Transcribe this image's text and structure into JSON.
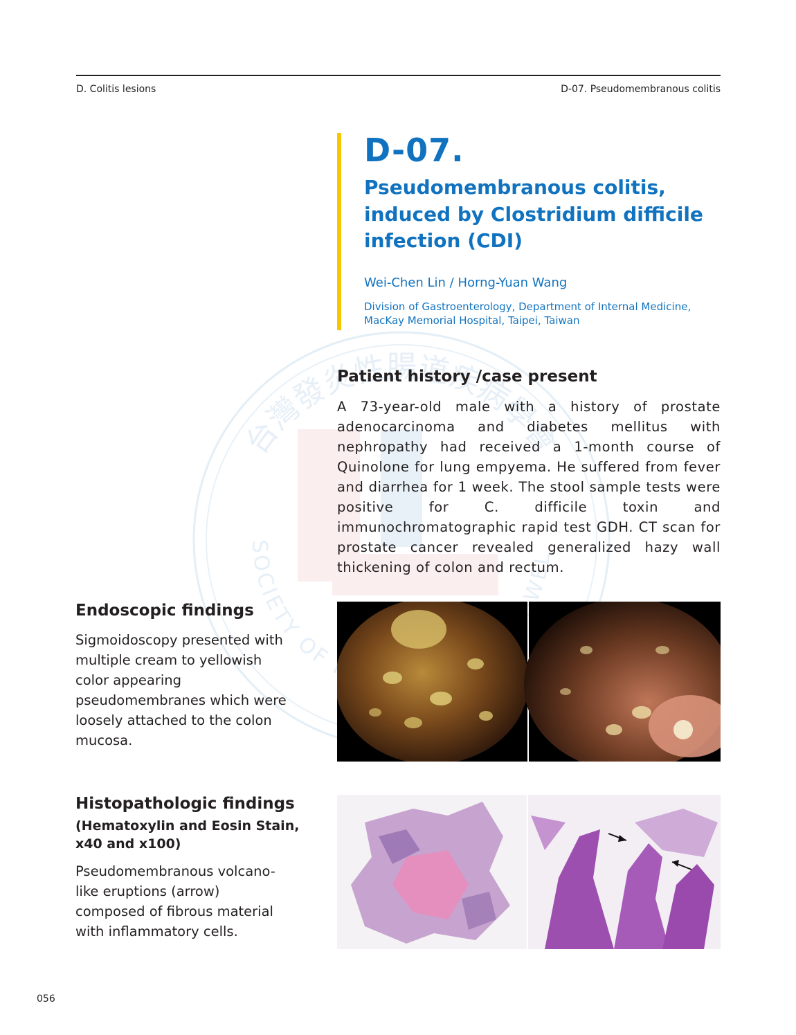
{
  "header": {
    "section": "D. Colitis lesions",
    "chapter": "D-07. Pseudomembranous colitis"
  },
  "title_block": {
    "code": "D-07.",
    "title": "Pseudomembranous colitis, induced by Clostridium difficile infection (CDI)",
    "authors": "Wei-Chen Lin / Horng-Yuan Wang",
    "affiliation": "Division of Gastroenterology, Department of Internal Medicine, MacKay Memorial Hospital, Taipei, Taiwan"
  },
  "patient_history": {
    "heading": "Patient history /case present",
    "text": "A 73-year-old male with a history of prostate adenocarcinoma and diabetes mellitus with nephropathy had received a 1-month course of Quinolone for lung empyema. He suffered from fever and diarrhea for 1 week. The stool sample tests were positive for C. difficile toxin and immunochromatographic rapid test GDH. CT scan for prostate cancer revealed generalized hazy wall thickening of colon and rectum."
  },
  "endoscopic": {
    "heading": "Endoscopic findings",
    "text": "Sigmoidoscopy presented with multiple cream to yellowish color appearing pseudomembranes which were loosely attached to the colon mucosa."
  },
  "histopathologic": {
    "heading": "Histopathologic findings",
    "stain": "(Hematoxylin and Eosin Stain, x40 and x100)",
    "text": "Pseudomembranous volcano-like eruptions (arrow) composed of fibrous material with inflammatory cells."
  },
  "watermark": {
    "chinese": "台灣發炎性腸道疾病學會",
    "english": "TAIWAN SOCIETY OF INFLAMMATORY BOWEL DISEASE"
  },
  "page_number": "056",
  "colors": {
    "title_blue": "#1173bf",
    "accent_yellow": "#f7c600",
    "text": "#231f20"
  }
}
